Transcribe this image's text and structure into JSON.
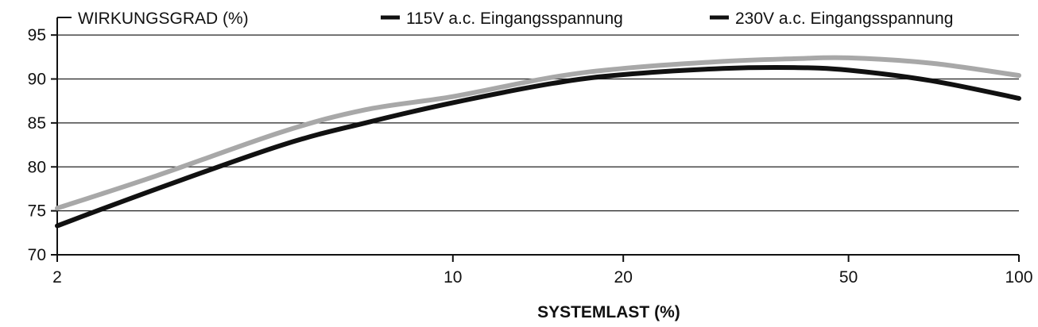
{
  "chart_data": {
    "type": "line",
    "ylabel": "WIRKUNGSGRAD (%)",
    "xlabel": "SYSTEMLAST (%)",
    "x_scale": "log",
    "xlim": [
      2,
      100
    ],
    "ylim": [
      70,
      97
    ],
    "x_ticks": [
      2,
      10,
      20,
      50,
      100
    ],
    "y_ticks": [
      70,
      75,
      80,
      85,
      90,
      95
    ],
    "grid": true,
    "legend_position": "top-right",
    "series": [
      {
        "name": "115V a.c. Eingangsspannung",
        "color": "#111111",
        "x": [
          2,
          3,
          5,
          7,
          10,
          15,
          20,
          30,
          40,
          50,
          70,
          100
        ],
        "y": [
          73.3,
          77.5,
          82.5,
          85.0,
          87.3,
          89.5,
          90.5,
          91.2,
          91.3,
          91.0,
          89.8,
          87.8
        ]
      },
      {
        "name": "230V a.c. Eingangsspannung",
        "color": "#a8a8a8",
        "x": [
          2,
          3,
          5,
          7,
          10,
          15,
          20,
          30,
          40,
          50,
          70,
          100
        ],
        "y": [
          75.3,
          79.0,
          84.0,
          86.5,
          88.0,
          90.2,
          91.2,
          92.0,
          92.3,
          92.4,
          91.8,
          90.4
        ]
      }
    ]
  }
}
